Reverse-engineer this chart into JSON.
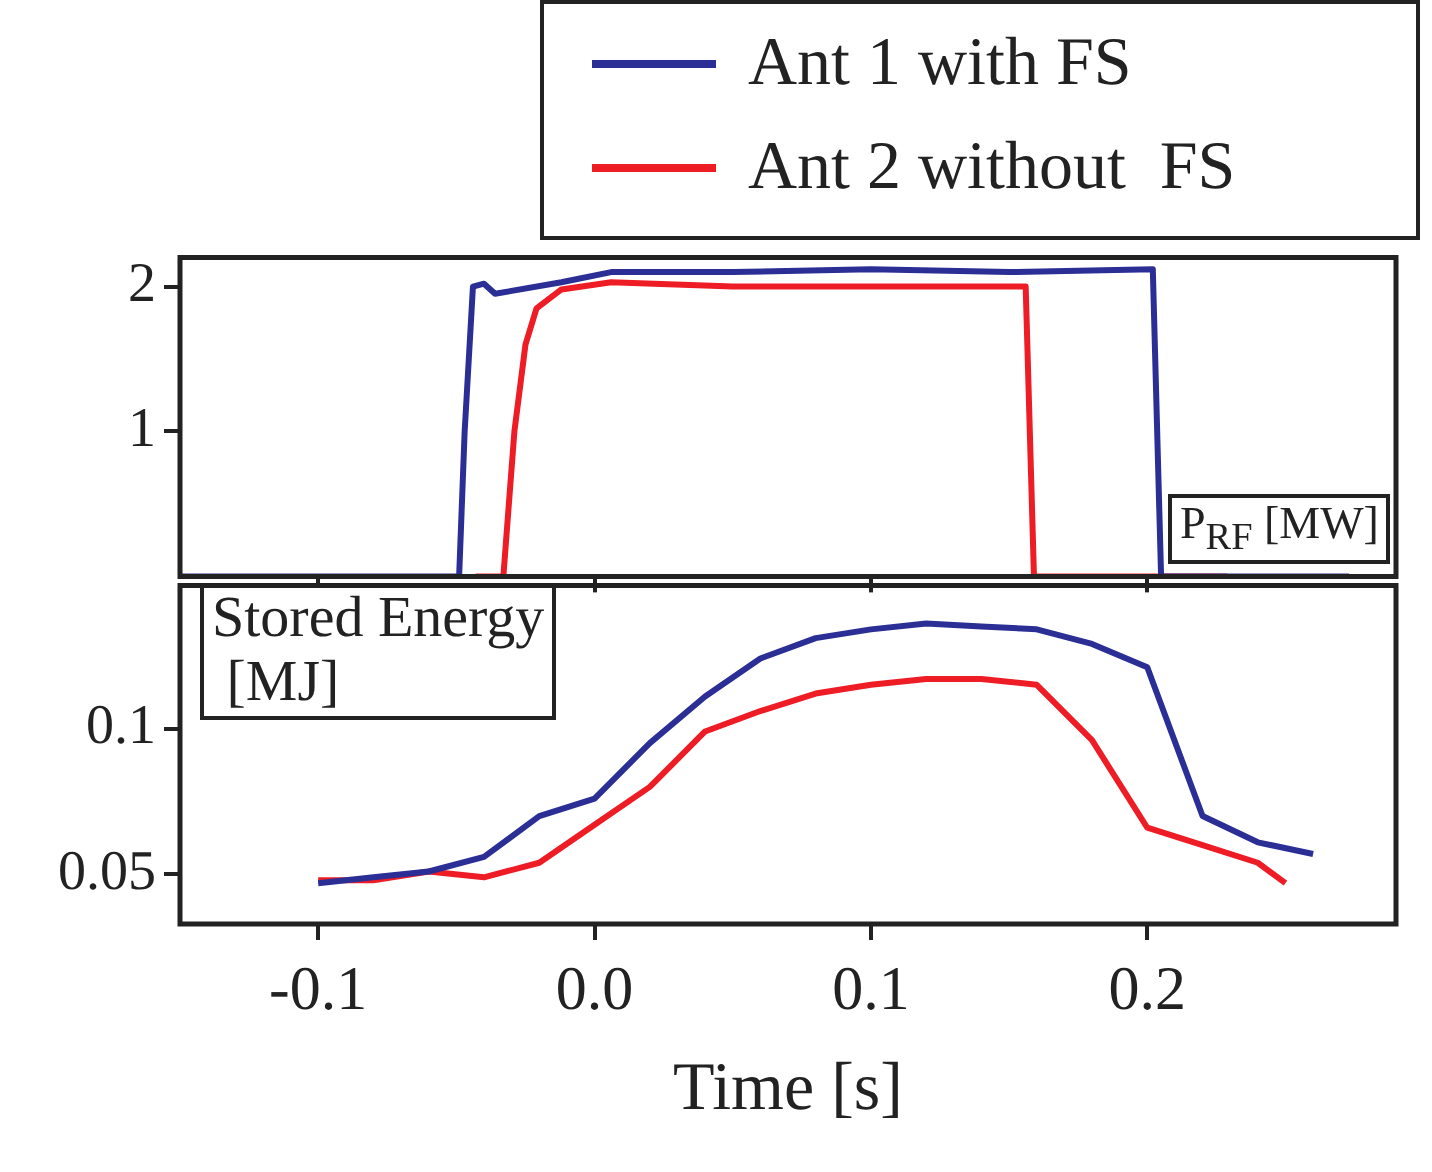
{
  "chart_data": [
    {
      "type": "line",
      "ylabel": "P$_{RF}$ [MW]",
      "xlim": [
        -0.15,
        0.29
      ],
      "xticks": [
        -0.1,
        0,
        0.1,
        0.2
      ],
      "ylim": [
        0,
        2.2
      ],
      "yticks": [
        1,
        2
      ],
      "tick_labels": "y",
      "legend": "top right",
      "marker": "none",
      "series": [
        {
          "name": "Ant 1 with FS",
          "color": "#2b2f95",
          "x": [
            -0.15,
            -0.049,
            -0.047,
            -0.044,
            -0.04,
            -0.036,
            -0.012,
            0.006,
            0.05,
            0.1,
            0.15,
            0.202,
            0.205,
            0.273
          ],
          "values": [
            0,
            0,
            1.0,
            2.0,
            2.02,
            1.95,
            2.03,
            2.1,
            2.1,
            2.12,
            2.1,
            2.12,
            0,
            0
          ]
        },
        {
          "name": "Ant 2 without  FS",
          "color": "#ee1c25",
          "x": [
            -0.043,
            -0.033,
            -0.029,
            -0.025,
            -0.021,
            -0.012,
            0.006,
            0.05,
            0.1,
            0.156,
            0.159,
            0.229
          ],
          "values": [
            0,
            0,
            1.0,
            1.6,
            1.85,
            1.98,
            2.03,
            2.0,
            2.0,
            2.0,
            0,
            0
          ]
        }
      ]
    },
    {
      "type": "line",
      "ylabel": "Stored Energy\n [MJ]",
      "xlabel": "Time [s]",
      "xlim": [
        -0.15,
        0.29
      ],
      "xticks": [
        -0.1,
        {
          "value": 0,
          "label": "0.0"
        },
        0.1,
        0.2
      ],
      "ylim": [
        0.033,
        0.149
      ],
      "yticks": [
        0.05,
        0.1
      ],
      "marker": "none",
      "series": [
        {
          "color": "#2b2f95",
          "x": [
            -0.1,
            -0.08,
            -0.06,
            -0.04,
            -0.02,
            0,
            0.02,
            0.04,
            0.06,
            0.08,
            0.1,
            0.12,
            0.14,
            0.16,
            0.18,
            0.2,
            0.22,
            0.24,
            0.26
          ],
          "values": [
            0.047,
            0.049,
            0.051,
            0.056,
            0.07,
            0.076,
            0.095,
            0.111,
            0.124,
            0.131,
            0.134,
            0.136,
            0.135,
            0.134,
            0.129,
            0.121,
            0.07,
            0.061,
            0.057
          ]
        },
        {
          "color": "#ee1c25",
          "x": [
            -0.1,
            -0.08,
            -0.06,
            -0.04,
            -0.02,
            0,
            0.02,
            0.04,
            0.06,
            0.08,
            0.1,
            0.12,
            0.14,
            0.16,
            0.18,
            0.2,
            0.22,
            0.24,
            0.25
          ],
          "values": [
            0.048,
            0.048,
            0.051,
            0.049,
            0.054,
            0.067,
            0.08,
            0.099,
            0.106,
            0.112,
            0.115,
            0.117,
            0.117,
            0.115,
            0.096,
            0.066,
            0.06,
            0.054,
            0.047
          ]
        }
      ]
    }
  ]
}
